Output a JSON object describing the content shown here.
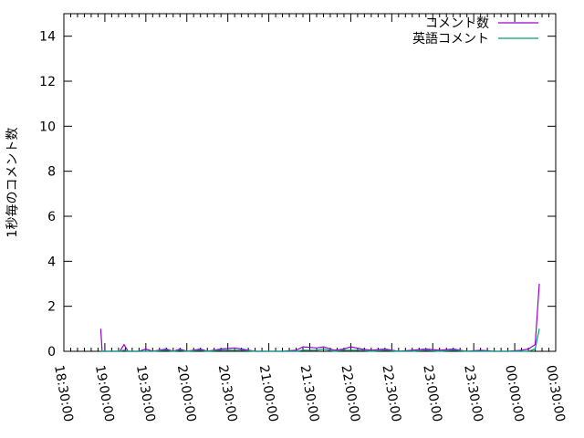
{
  "chart_data": {
    "type": "line",
    "title": "",
    "xlabel": "",
    "ylabel": "1秒毎のコメント数",
    "xlim": [
      "18:30:00",
      "00:30:00"
    ],
    "ylim": [
      0,
      15
    ],
    "x_ticks": [
      "18:30:00",
      "19:00:00",
      "19:30:00",
      "20:00:00",
      "20:30:00",
      "21:00:00",
      "21:30:00",
      "22:00:00",
      "22:30:00",
      "23:00:00",
      "23:30:00",
      "00:00:00",
      "00:30:00"
    ],
    "y_ticks": [
      0,
      2,
      4,
      6,
      8,
      10,
      12,
      14
    ],
    "grid": false,
    "legend": "top-right",
    "series": [
      {
        "name": "コメント数",
        "color": "#9400d3",
        "x": [
          "18:57",
          "18:58",
          "19:05",
          "19:11",
          "19:14",
          "19:17",
          "19:25",
          "19:30",
          "19:35",
          "19:45",
          "19:50",
          "19:55",
          "20:00",
          "20:10",
          "20:15",
          "20:25",
          "20:35",
          "20:40",
          "20:50",
          "21:00",
          "21:10",
          "21:20",
          "21:25",
          "21:35",
          "21:40",
          "21:48",
          "21:55",
          "22:00",
          "22:08",
          "22:15",
          "22:25",
          "22:35",
          "22:45",
          "22:55",
          "23:05",
          "23:15",
          "23:25",
          "23:35",
          "23:45",
          "23:55",
          "00:05",
          "00:10",
          "00:15",
          "00:18"
        ],
        "values": [
          1.0,
          0,
          0,
          0,
          0.3,
          0,
          0,
          0.1,
          0,
          0.1,
          0,
          0.1,
          0,
          0.1,
          0,
          0.1,
          0.15,
          0.1,
          0,
          0,
          0,
          0.05,
          0.2,
          0.15,
          0.2,
          0.05,
          0.1,
          0.2,
          0.1,
          0.05,
          0.1,
          0,
          0.05,
          0.1,
          0.05,
          0.1,
          0,
          0.05,
          0,
          0,
          0.05,
          0.1,
          0.3,
          3.0
        ]
      },
      {
        "name": "英語コメント",
        "color": "#009e73",
        "x": [
          "18:57",
          "18:58",
          "19:05",
          "19:11",
          "19:14",
          "19:17",
          "19:25",
          "19:30",
          "19:35",
          "19:45",
          "19:50",
          "19:55",
          "20:00",
          "20:10",
          "20:15",
          "20:25",
          "20:35",
          "20:40",
          "20:50",
          "21:00",
          "21:10",
          "21:20",
          "21:25",
          "21:35",
          "21:40",
          "21:48",
          "21:55",
          "22:00",
          "22:08",
          "22:15",
          "22:25",
          "22:35",
          "22:45",
          "22:55",
          "23:05",
          "23:15",
          "23:25",
          "23:35",
          "23:45",
          "23:55",
          "00:05",
          "00:10",
          "00:15",
          "00:18"
        ],
        "values": [
          0,
          0,
          0,
          0,
          0.05,
          0,
          0,
          0,
          0,
          0.05,
          0,
          0.05,
          0,
          0.05,
          0,
          0.05,
          0.05,
          0.05,
          0,
          0,
          0,
          0,
          0.05,
          0.05,
          0.1,
          0,
          0.05,
          0.05,
          0.05,
          0,
          0.05,
          0,
          0,
          0.05,
          0,
          0.05,
          0,
          0,
          0,
          0,
          0,
          0,
          0.1,
          1.0
        ]
      }
    ]
  }
}
